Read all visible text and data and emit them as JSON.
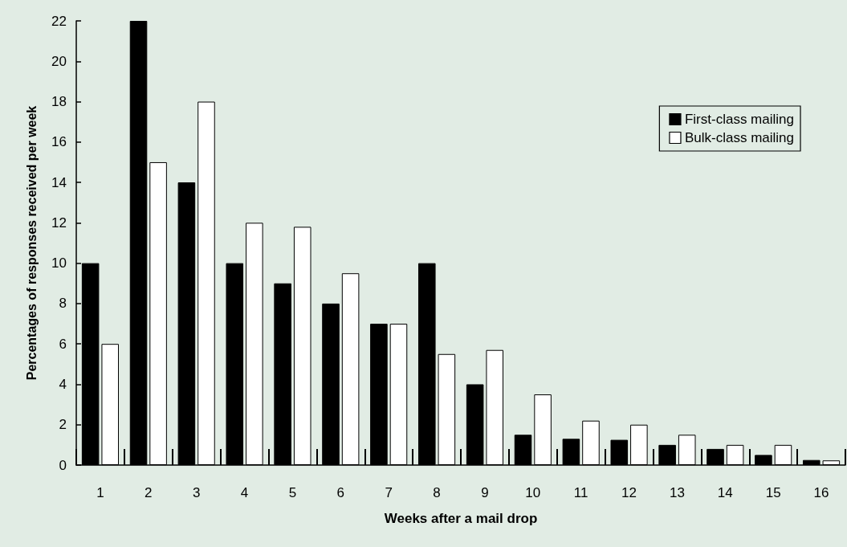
{
  "chart_data": {
    "type": "bar",
    "xlabel": "Weeks after a mail drop",
    "ylabel": "Percentages of responses received per week",
    "categories": [
      "1",
      "2",
      "3",
      "4",
      "5",
      "6",
      "7",
      "8",
      "9",
      "10",
      "11",
      "12",
      "13",
      "14",
      "15",
      "16"
    ],
    "series": [
      {
        "name": "First-class mailing",
        "color": "#000000",
        "values": [
          10,
          22,
          14,
          10,
          9,
          8,
          7,
          10,
          4,
          1.5,
          1.3,
          1.25,
          1,
          0.8,
          0.5,
          0.25
        ]
      },
      {
        "name": "Bulk-class mailing",
        "color": "#ffffff",
        "values": [
          6,
          15,
          18,
          12,
          11.8,
          9.5,
          7,
          5.5,
          5.7,
          3.5,
          2.2,
          2,
          1.5,
          1,
          1,
          0.23
        ]
      }
    ],
    "ylim": [
      0,
      22
    ],
    "yticks": [
      0,
      2,
      4,
      6,
      8,
      10,
      12,
      14,
      16,
      18,
      20,
      22
    ],
    "grid": false,
    "legend": "top right"
  }
}
